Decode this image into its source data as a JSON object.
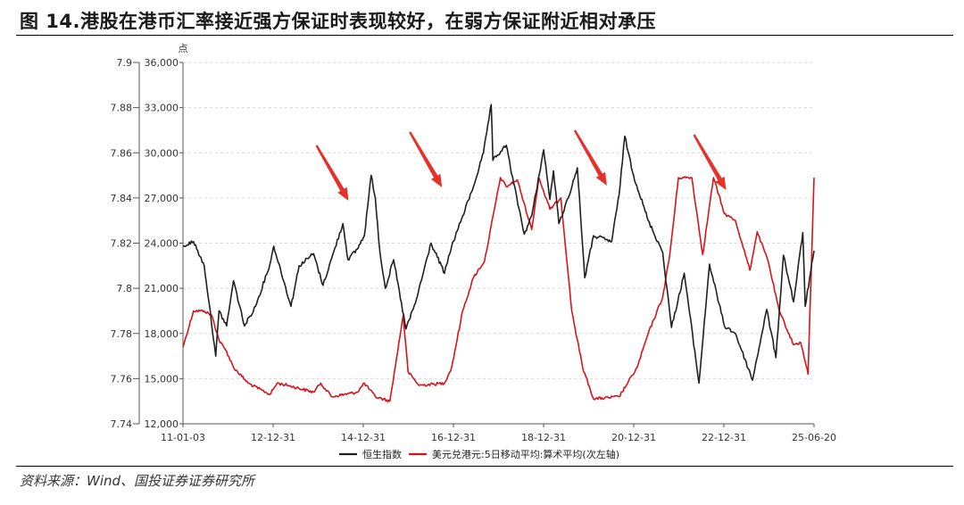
{
  "figure": {
    "title": "图 14.港股在港币汇率接近强方保证时表现较好，在弱方保证附近相对承压",
    "source": "资料来源：Wind、国投证券证券研究所"
  },
  "chart_data": {
    "type": "line",
    "left_unit": "点",
    "x_ticks": [
      "11-01-03",
      "12-12-31",
      "14-12-31",
      "16-12-31",
      "18-12-31",
      "20-12-31",
      "22-12-31",
      "25-06-20"
    ],
    "x_range": [
      "2011-01-03",
      "2025-06-20"
    ],
    "y_left": {
      "range": [
        12000,
        36000
      ],
      "ticks": [
        "12,000",
        "15,000",
        "18,000",
        "21,000",
        "24,000",
        "27,000",
        "30,000",
        "33,000",
        "36,000"
      ]
    },
    "y_right": {
      "range": [
        7.74,
        7.9
      ],
      "ticks": [
        "7.74",
        "7.76",
        "7.78",
        "7.8",
        "7.82",
        "7.84",
        "7.86",
        "7.88",
        "7.9"
      ]
    },
    "grid": true,
    "legend_position": "bottom",
    "series": [
      {
        "name": "恒生指数",
        "axis": "left",
        "color": "#231f20",
        "points": [
          [
            "2011-01-03",
            23800
          ],
          [
            "2011-04-01",
            24100
          ],
          [
            "2011-06-30",
            22500
          ],
          [
            "2011-08-10",
            20000
          ],
          [
            "2011-10-04",
            16500
          ],
          [
            "2011-11-01",
            19500
          ],
          [
            "2012-01-03",
            18500
          ],
          [
            "2012-03-01",
            21500
          ],
          [
            "2012-06-01",
            18500
          ],
          [
            "2012-09-01",
            19800
          ],
          [
            "2012-12-31",
            22600
          ],
          [
            "2013-02-01",
            23800
          ],
          [
            "2013-06-25",
            19800
          ],
          [
            "2013-09-01",
            22500
          ],
          [
            "2013-12-31",
            23300
          ],
          [
            "2014-03-20",
            21200
          ],
          [
            "2014-06-01",
            23000
          ],
          [
            "2014-09-03",
            25300
          ],
          [
            "2014-10-15",
            22900
          ],
          [
            "2014-12-31",
            23600
          ],
          [
            "2015-03-01",
            24500
          ],
          [
            "2015-04-27",
            28500
          ],
          [
            "2015-06-01",
            27000
          ],
          [
            "2015-07-08",
            23500
          ],
          [
            "2015-08-24",
            21000
          ],
          [
            "2015-11-01",
            22900
          ],
          [
            "2016-02-12",
            18300
          ],
          [
            "2016-05-01",
            20000
          ],
          [
            "2016-09-09",
            24000
          ],
          [
            "2016-12-31",
            22000
          ],
          [
            "2017-03-01",
            23800
          ],
          [
            "2017-06-01",
            25800
          ],
          [
            "2017-09-01",
            27800
          ],
          [
            "2017-11-22",
            30000
          ],
          [
            "2018-01-26",
            33200
          ],
          [
            "2018-02-09",
            29500
          ],
          [
            "2018-06-01",
            30500
          ],
          [
            "2018-08-01",
            28000
          ],
          [
            "2018-10-30",
            24600
          ],
          [
            "2018-12-31",
            25800
          ],
          [
            "2019-04-10",
            30200
          ],
          [
            "2019-06-01",
            26900
          ],
          [
            "2019-07-01",
            28800
          ],
          [
            "2019-08-15",
            25300
          ],
          [
            "2019-11-01",
            27000
          ],
          [
            "2020-01-17",
            29000
          ],
          [
            "2020-03-19",
            21700
          ],
          [
            "2020-06-01",
            24500
          ],
          [
            "2020-10-30",
            24100
          ],
          [
            "2020-12-31",
            27200
          ],
          [
            "2021-02-17",
            31100
          ],
          [
            "2021-05-01",
            28500
          ],
          [
            "2021-09-01",
            25500
          ],
          [
            "2021-12-31",
            23400
          ],
          [
            "2022-03-15",
            18400
          ],
          [
            "2022-06-30",
            22000
          ],
          [
            "2022-10-31",
            14700
          ],
          [
            "2023-01-27",
            22600
          ],
          [
            "2023-06-01",
            18500
          ],
          [
            "2023-09-01",
            18000
          ],
          [
            "2024-01-22",
            14900
          ],
          [
            "2024-05-20",
            19600
          ],
          [
            "2024-08-05",
            16400
          ],
          [
            "2024-10-07",
            23200
          ],
          [
            "2024-12-31",
            20100
          ],
          [
            "2025-03-18",
            24700
          ],
          [
            "2025-04-07",
            19800
          ],
          [
            "2025-06-20",
            23500
          ]
        ]
      },
      {
        "name": "美元兑港元:5日移动平均:算术平均(次左轴)",
        "axis": "right",
        "color": "#d7141a",
        "points": [
          [
            "2011-01-03",
            7.774
          ],
          [
            "2011-04-01",
            7.79
          ],
          [
            "2011-06-30",
            7.79
          ],
          [
            "2011-09-01",
            7.788
          ],
          [
            "2011-11-01",
            7.777
          ],
          [
            "2012-01-03",
            7.772
          ],
          [
            "2012-03-01",
            7.765
          ],
          [
            "2012-07-01",
            7.758
          ],
          [
            "2012-12-31",
            7.753
          ],
          [
            "2013-03-01",
            7.758
          ],
          [
            "2013-06-01",
            7.757
          ],
          [
            "2013-12-31",
            7.754
          ],
          [
            "2014-03-01",
            7.758
          ],
          [
            "2014-06-01",
            7.752
          ],
          [
            "2014-12-31",
            7.754
          ],
          [
            "2015-03-01",
            7.758
          ],
          [
            "2015-06-01",
            7.752
          ],
          [
            "2015-10-01",
            7.75
          ],
          [
            "2016-01-20",
            7.788
          ],
          [
            "2016-03-01",
            7.763
          ],
          [
            "2016-06-01",
            7.757
          ],
          [
            "2016-12-31",
            7.758
          ],
          [
            "2017-03-01",
            7.765
          ],
          [
            "2017-06-01",
            7.79
          ],
          [
            "2017-09-01",
            7.805
          ],
          [
            "2017-12-01",
            7.812
          ],
          [
            "2018-04-13",
            7.849
          ],
          [
            "2018-06-01",
            7.845
          ],
          [
            "2018-09-01",
            7.848
          ],
          [
            "2018-12-31",
            7.826
          ],
          [
            "2019-03-01",
            7.849
          ],
          [
            "2019-06-01",
            7.835
          ],
          [
            "2019-09-01",
            7.84
          ],
          [
            "2019-12-01",
            7.79
          ],
          [
            "2020-03-01",
            7.765
          ],
          [
            "2020-06-01",
            7.751
          ],
          [
            "2020-12-31",
            7.752
          ],
          [
            "2021-03-01",
            7.757
          ],
          [
            "2021-06-01",
            7.765
          ],
          [
            "2021-09-01",
            7.78
          ],
          [
            "2021-12-31",
            7.796
          ],
          [
            "2022-03-01",
            7.815
          ],
          [
            "2022-05-12",
            7.849
          ],
          [
            "2022-09-01",
            7.849
          ],
          [
            "2022-12-01",
            7.815
          ],
          [
            "2023-03-01",
            7.849
          ],
          [
            "2023-06-01",
            7.833
          ],
          [
            "2023-09-01",
            7.83
          ],
          [
            "2023-12-31",
            7.808
          ],
          [
            "2024-03-01",
            7.825
          ],
          [
            "2024-06-01",
            7.812
          ],
          [
            "2024-09-01",
            7.79
          ],
          [
            "2024-12-31",
            7.775
          ],
          [
            "2025-03-01",
            7.776
          ],
          [
            "2025-05-01",
            7.762
          ],
          [
            "2025-06-20",
            7.849
          ]
        ]
      }
    ]
  }
}
